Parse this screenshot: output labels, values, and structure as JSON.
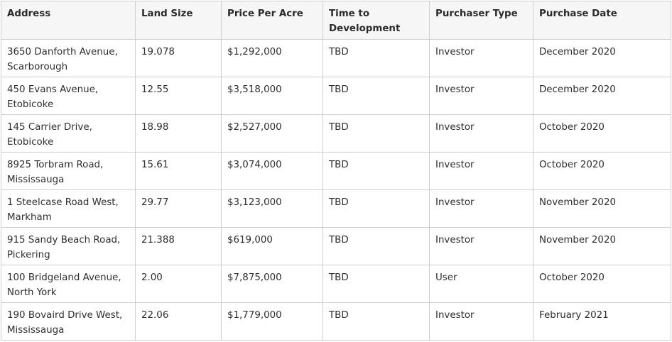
{
  "table": {
    "headers": [
      "Address",
      "Land Size",
      "Price Per Acre",
      "Time to Development",
      "Purchaser Type",
      "Purchase Date"
    ],
    "rows": [
      [
        "3650 Danforth Avenue, Scarborough",
        "19.078",
        "$1,292,000",
        "TBD",
        "Investor",
        "December 2020"
      ],
      [
        "450 Evans Avenue, Etobicoke",
        "12.55",
        "$3,518,000",
        "TBD",
        "Investor",
        "December 2020"
      ],
      [
        "145 Carrier Drive, Etobicoke",
        "18.98",
        "$2,527,000",
        "TBD",
        "Investor",
        "October 2020"
      ],
      [
        "8925 Torbram Road, Mississauga",
        "15.61",
        "$3,074,000",
        "TBD",
        "Investor",
        "October 2020"
      ],
      [
        "1 Steelcase Road West, Markham",
        "29.77",
        "$3,123,000",
        "TBD",
        "Investor",
        "November 2020"
      ],
      [
        "915 Sandy Beach Road, Pickering",
        "21.388",
        "$619,000",
        "TBD",
        "Investor",
        "November 2020"
      ],
      [
        "100 Bridgeland Avenue, North York",
        "2.00",
        "$7,875,000",
        "TBD",
        "User",
        "October 2020"
      ],
      [
        "190 Bovaird Drive West, Mississauga",
        "22.06",
        "$1,779,000",
        "TBD",
        "Investor",
        "February 2021"
      ]
    ]
  }
}
